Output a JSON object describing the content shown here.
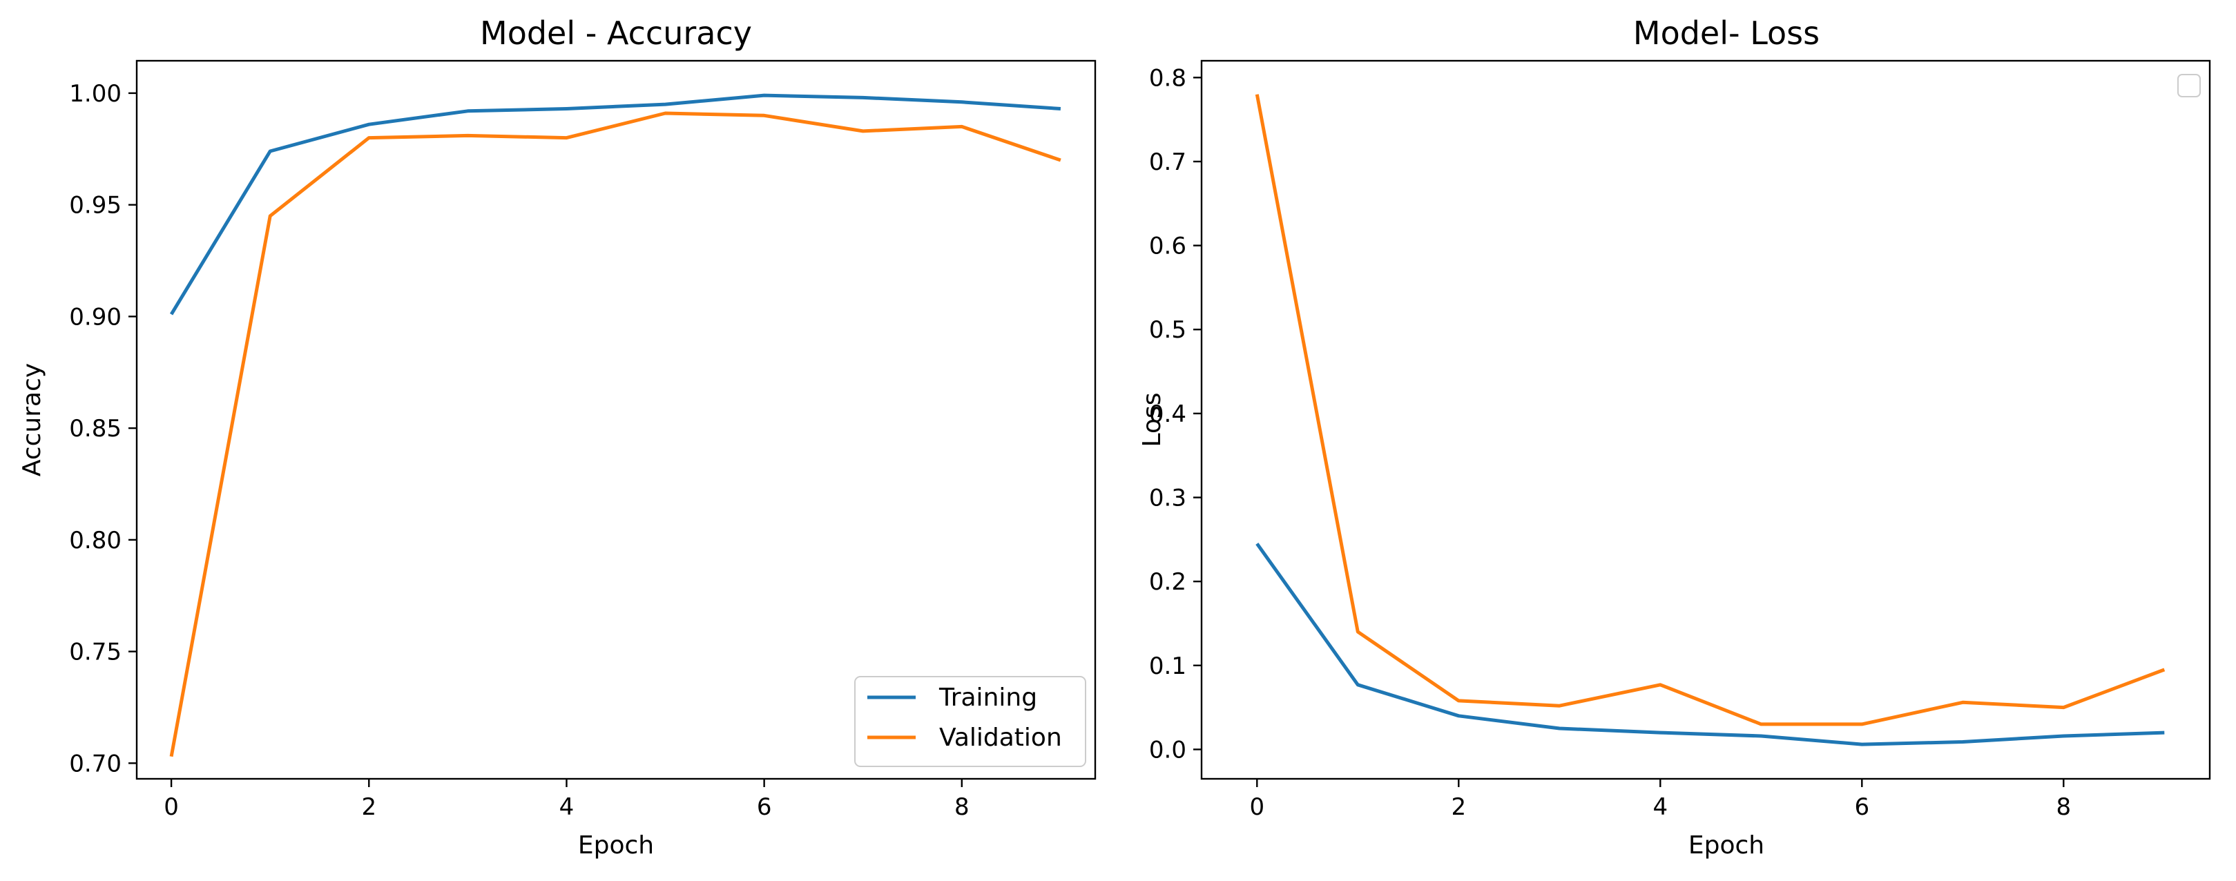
{
  "colors": {
    "training": "#1f77b4",
    "validation": "#ff7f0e"
  },
  "chart_data": [
    {
      "type": "line",
      "title": "Model - Accuracy",
      "xlabel": "Epoch",
      "ylabel": "Accuracy",
      "x": [
        0,
        1,
        2,
        3,
        4,
        5,
        6,
        7,
        8,
        9
      ],
      "xlim": [
        -0.35,
        9.35
      ],
      "ylim": [
        0.693,
        1.0145
      ],
      "xticks": [
        0,
        2,
        4,
        6,
        8
      ],
      "xtick_labels": [
        "0",
        "2",
        "4",
        "6",
        "8"
      ],
      "yticks": [
        0.7,
        0.75,
        0.8,
        0.85,
        0.9,
        0.95,
        1.0
      ],
      "ytick_labels": [
        "0.70",
        "0.75",
        "0.80",
        "0.85",
        "0.90",
        "0.95",
        "1.00"
      ],
      "grid": false,
      "legend": "lower-right",
      "series": [
        {
          "name": "Training",
          "color_key": "training",
          "values": [
            0.901,
            0.974,
            0.986,
            0.992,
            0.993,
            0.995,
            0.999,
            0.998,
            0.996,
            0.993
          ]
        },
        {
          "name": "Validation",
          "color_key": "validation",
          "values": [
            0.703,
            0.945,
            0.98,
            0.981,
            0.98,
            0.991,
            0.99,
            0.983,
            0.985,
            0.97
          ]
        }
      ]
    },
    {
      "type": "line",
      "title": "Model- Loss",
      "xlabel": "Epoch",
      "ylabel": "Loss",
      "x": [
        0,
        1,
        2,
        3,
        4,
        5,
        6,
        7,
        8,
        9
      ],
      "xlim": [
        -0.55,
        9.45
      ],
      "ylim": [
        -0.035,
        0.82
      ],
      "xticks": [
        0,
        2,
        4,
        6,
        8
      ],
      "xtick_labels": [
        "0",
        "2",
        "4",
        "6",
        "8"
      ],
      "yticks": [
        0.0,
        0.1,
        0.2,
        0.3,
        0.4,
        0.5,
        0.6,
        0.7,
        0.8
      ],
      "ytick_labels": [
        "0.0",
        "0.1",
        "0.2",
        "0.3",
        "0.4",
        "0.5",
        "0.6",
        "0.7",
        "0.8"
      ],
      "grid": false,
      "legend": "upper-right (empty)",
      "series": [
        {
          "color_key": "training",
          "values": [
            0.245,
            0.077,
            0.04,
            0.025,
            0.02,
            0.016,
            0.006,
            0.009,
            0.016,
            0.02
          ]
        },
        {
          "color_key": "validation",
          "values": [
            0.78,
            0.14,
            0.058,
            0.052,
            0.077,
            0.03,
            0.03,
            0.056,
            0.05,
            0.095
          ]
        }
      ]
    }
  ]
}
